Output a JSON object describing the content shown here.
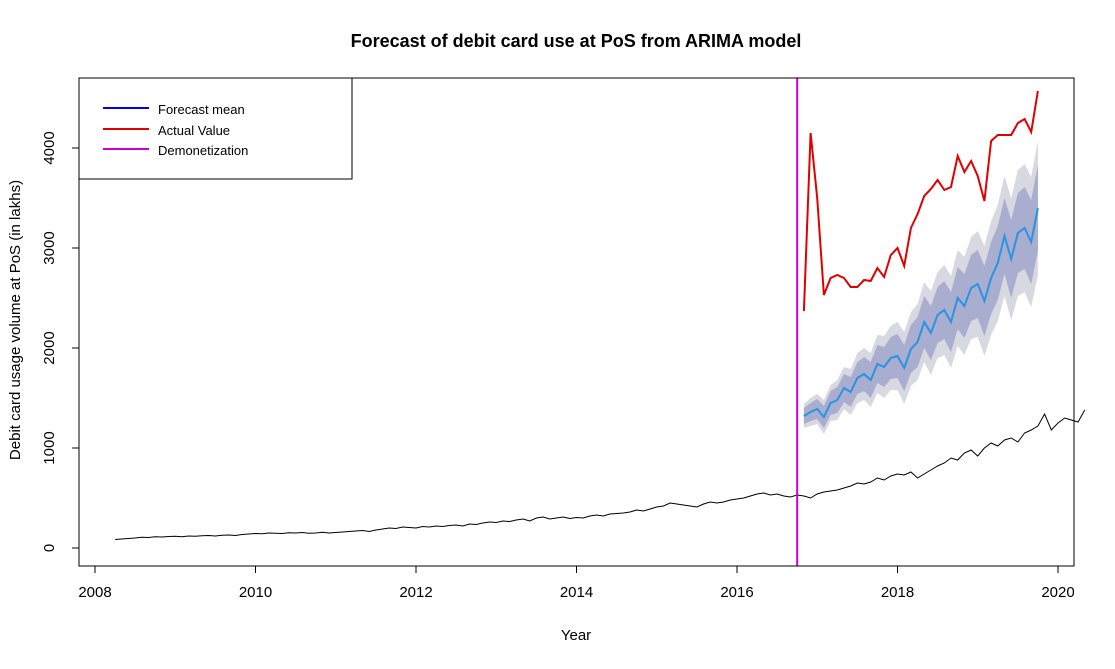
{
  "chart_data": {
    "type": "line",
    "title": "Forecast of debit card use at PoS from ARIMA model",
    "xlabel": "Year",
    "ylabel": "Debit card usage volume at PoS (in lakhs)",
    "xlim": [
      2008,
      2020
    ],
    "ylim": [
      0,
      4500
    ],
    "x_ticks": [
      "2008",
      "2010",
      "2012",
      "2014",
      "2016",
      "2018",
      "2020"
    ],
    "y_ticks": [
      "0",
      "1000",
      "2000",
      "3000",
      "4000"
    ],
    "grid": false,
    "legend_position": "top-left",
    "legend": [
      {
        "label": "Forecast mean",
        "color": "#0000ff"
      },
      {
        "label": "Actual Value",
        "color": "#e00000"
      },
      {
        "label": "Demonetization",
        "color": "#cc00cc"
      }
    ],
    "demonetization_x": 2016.75,
    "historical": {
      "start": 2008.25,
      "step": 0.0833333,
      "color": "#000000",
      "values": [
        85,
        90,
        95,
        100,
        108,
        105,
        112,
        110,
        115,
        118,
        112,
        120,
        118,
        122,
        125,
        120,
        128,
        130,
        125,
        135,
        140,
        145,
        142,
        150,
        148,
        145,
        152,
        150,
        155,
        148,
        150,
        158,
        150,
        155,
        160,
        165,
        170,
        175,
        165,
        180,
        190,
        200,
        195,
        210,
        205,
        200,
        215,
        210,
        220,
        215,
        225,
        230,
        220,
        240,
        235,
        250,
        260,
        255,
        270,
        265,
        280,
        290,
        270,
        300,
        310,
        290,
        300,
        310,
        295,
        305,
        300,
        320,
        330,
        320,
        340,
        345,
        350,
        360,
        380,
        370,
        390,
        410,
        420,
        450,
        440,
        430,
        420,
        410,
        440,
        460,
        450,
        460,
        480,
        490,
        500,
        520,
        540,
        550,
        530,
        540,
        520,
        510,
        530,
        520,
        500,
        540,
        560,
        570,
        580,
        600,
        620,
        650,
        640,
        660,
        700,
        680,
        720,
        740,
        730,
        760,
        700,
        740,
        780,
        820,
        850,
        900,
        880,
        950,
        980,
        920,
        1000,
        1050,
        1020,
        1080,
        1100,
        1060,
        1150,
        1180,
        1220,
        1340,
        1180,
        1250,
        1300,
        1280,
        1260,
        1380
      ]
    },
    "forecast": {
      "start": 2016.8333,
      "step": 0.0833333,
      "color": "#2a94e0",
      "mean": [
        1320,
        1360,
        1390,
        1310,
        1450,
        1480,
        1600,
        1560,
        1700,
        1740,
        1680,
        1840,
        1810,
        1900,
        1920,
        1800,
        1990,
        2060,
        2260,
        2150,
        2330,
        2380,
        2260,
        2500,
        2420,
        2600,
        2640,
        2470,
        2700,
        2850,
        3120,
        2890,
        3150,
        3200,
        3060,
        3400
      ],
      "lower80": [
        1240,
        1270,
        1290,
        1200,
        1330,
        1350,
        1460,
        1410,
        1540,
        1570,
        1500,
        1650,
        1610,
        1690,
        1700,
        1570,
        1750,
        1810,
        2000,
        1880,
        2050,
        2090,
        1960,
        2190,
        2100,
        2270,
        2300,
        2120,
        2340,
        2480,
        2740,
        2500,
        2750,
        2790,
        2640,
        2970
      ],
      "upper80": [
        1400,
        1450,
        1490,
        1420,
        1570,
        1610,
        1740,
        1710,
        1860,
        1910,
        1860,
        2030,
        2010,
        2110,
        2140,
        2030,
        2230,
        2310,
        2520,
        2420,
        2610,
        2670,
        2560,
        2810,
        2740,
        2930,
        2980,
        2820,
        3060,
        3220,
        3500,
        3280,
        3550,
        3610,
        3480,
        3830
      ],
      "lower95": [
        1200,
        1220,
        1240,
        1140,
        1270,
        1280,
        1390,
        1330,
        1450,
        1480,
        1410,
        1550,
        1500,
        1580,
        1580,
        1440,
        1620,
        1680,
        1860,
        1730,
        1900,
        1930,
        1800,
        2020,
        1930,
        2090,
        2110,
        1920,
        2130,
        2270,
        2520,
        2280,
        2520,
        2560,
        2410,
        2730
      ],
      "upper95": [
        1440,
        1500,
        1540,
        1480,
        1630,
        1680,
        1810,
        1790,
        1950,
        2000,
        1950,
        2130,
        2120,
        2220,
        2260,
        2160,
        2360,
        2440,
        2660,
        2570,
        2760,
        2830,
        2720,
        2980,
        2910,
        3110,
        3170,
        3020,
        3270,
        3430,
        3720,
        3500,
        3780,
        3840,
        3710,
        4070
      ],
      "band80_color": "#a9add0",
      "band95_color": "#d8d8e0"
    },
    "actual": {
      "start": 2016.8333,
      "step": 0.0833333,
      "color": "#e00000",
      "values": [
        2370,
        4150,
        3500,
        2530,
        2700,
        2730,
        2700,
        2610,
        2610,
        2680,
        2670,
        2800,
        2710,
        2930,
        3000,
        2820,
        3200,
        3340,
        3520,
        3590,
        3680,
        3580,
        3610,
        3920,
        3760,
        3870,
        3720,
        3470,
        4070,
        4130,
        4130,
        4130,
        4250,
        4290,
        4160,
        4570
      ]
    }
  }
}
